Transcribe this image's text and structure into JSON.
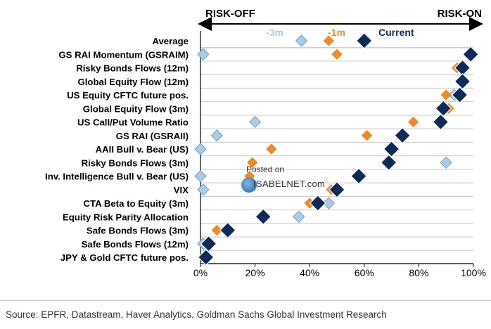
{
  "header": {
    "risk_off": "RISK-OFF",
    "risk_on": "RISK-ON"
  },
  "legend": {
    "m3": "-3m",
    "m1": "-1m",
    "current": "Current"
  },
  "colors": {
    "m3": "#a9cde8",
    "m1": "#f08a24",
    "current": "#0e2a56",
    "grid": "#c8c8c8",
    "axis": "#000000"
  },
  "chart_data": {
    "type": "scatter",
    "xlim": [
      0,
      100
    ],
    "x_ticks": [
      0,
      20,
      40,
      60,
      80,
      100
    ],
    "x_tick_labels": [
      "0%",
      "20%",
      "40%",
      "60%",
      "80%",
      "100%"
    ],
    "grid": "horizontal",
    "categories": [
      "Average",
      "GS RAI Momentum (GSRAIM)",
      "Risky Bonds Flows (12m)",
      "Global Equity Flow (12m)",
      "US Equity CFTC future pos.",
      "Global Equity Flow (3m)",
      "US Call/Put Volume Ratio",
      "GS RAI (GSRAII)",
      "AAII Bull v. Bear (US)",
      "Risky Bonds Flows (3m)",
      "Inv. Intelligence Bull v. Bear (US)",
      "VIX",
      "CTA Beta to Equity (3m)",
      "Equity Risk Parity Allocation",
      "Safe Bonds Flows (3m)",
      "Safe Bonds Flows (12m)",
      "JPY & Gold CFTC future pos."
    ],
    "series": [
      {
        "name": "-3m",
        "values": [
          37,
          1,
          96,
          96,
          93,
          90,
          20,
          6,
          0,
          90,
          0,
          1,
          47,
          36,
          10,
          1,
          2
        ]
      },
      {
        "name": "-1m",
        "values": [
          47,
          50,
          94,
          96,
          90,
          91,
          78,
          61,
          26,
          19,
          18,
          48,
          40,
          23,
          6,
          2,
          2
        ]
      },
      {
        "name": "Current",
        "values": [
          60,
          99,
          96,
          96,
          95,
          89,
          88,
          74,
          70,
          69,
          58,
          50,
          43,
          23,
          10,
          3,
          2
        ]
      }
    ]
  },
  "watermark": {
    "line1": "Posted on",
    "line2": "ISABELNET.com"
  },
  "source": "Source: EPFR, Datastream, Haver Analytics, Goldman Sachs Global Investment Research"
}
